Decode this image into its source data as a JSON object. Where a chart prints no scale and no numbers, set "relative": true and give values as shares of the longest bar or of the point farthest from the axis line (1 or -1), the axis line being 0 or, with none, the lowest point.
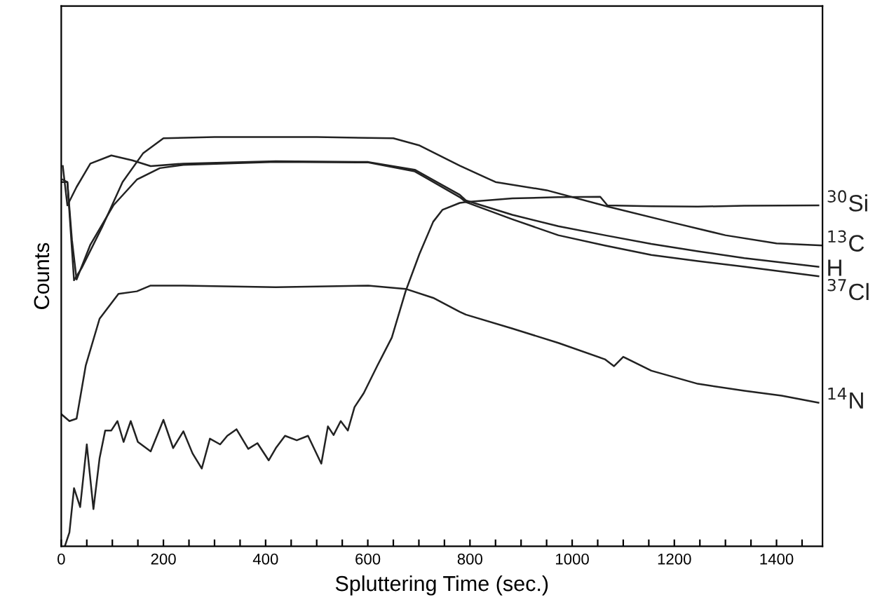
{
  "chart_data": {
    "type": "line",
    "relative": true,
    "xlabel": "Spluttering Time (sec.)",
    "ylabel": "Counts",
    "xlim": [
      0,
      1490
    ],
    "xticks": [
      0,
      {
        "value": 50,
        "label": null
      },
      {
        "value": 100,
        "label": null
      },
      {
        "value": 150,
        "label": null
      },
      200,
      {
        "value": 250,
        "label": null
      },
      {
        "value": 300,
        "label": null
      },
      {
        "value": 350,
        "label": null
      },
      400,
      {
        "value": 450,
        "label": null
      },
      {
        "value": 500,
        "label": null
      },
      {
        "value": 550,
        "label": null
      },
      600,
      {
        "value": 650,
        "label": null
      },
      {
        "value": 700,
        "label": null
      },
      {
        "value": 750,
        "label": null
      },
      800,
      {
        "value": 850,
        "label": null
      },
      {
        "value": 900,
        "label": null
      },
      {
        "value": 950,
        "label": null
      },
      1000,
      {
        "value": 1050,
        "label": null
      },
      {
        "value": 1100,
        "label": null
      },
      {
        "value": 1150,
        "label": null
      },
      1200,
      {
        "value": 1250,
        "label": null
      },
      {
        "value": 1300,
        "label": null
      },
      {
        "value": 1350,
        "label": null
      },
      1400,
      {
        "value": 1450,
        "label": null
      }
    ],
    "tick_labels": "x",
    "grid": false,
    "legend": false,
    "marker": "none",
    "line_style": "solid",
    "series": [
      {
        "name": "$^{30}$Si",
        "color": "#222222",
        "x": [
          7,
          16,
          25,
          37,
          50,
          63,
          75,
          86,
          98,
          110,
          122,
          136,
          150,
          175,
          200,
          219,
          239,
          257,
          275,
          291,
          311,
          325,
          343,
          366,
          384,
          406,
          420,
          438,
          461,
          483,
          509,
          522,
          533,
          547,
          561,
          574,
          592,
          619,
          647,
          674,
          701,
          728,
          746,
          780,
          792,
          883,
          973,
          1055,
          1069,
          1155,
          1246,
          1337,
          1482
        ],
        "values": [
          0,
          0.034,
          0.142,
          0.096,
          0.249,
          0.091,
          0.215,
          0.283,
          0.283,
          0.306,
          0.255,
          0.306,
          0.255,
          0.232,
          0.309,
          0.24,
          0.281,
          0.227,
          0.19,
          0.263,
          0.249,
          0.27,
          0.286,
          0.238,
          0.252,
          0.21,
          0.24,
          0.27,
          0.259,
          0.27,
          0.202,
          0.293,
          0.272,
          0.306,
          0.283,
          0.34,
          0.374,
          0.442,
          0.51,
          0.623,
          0.714,
          0.793,
          0.822,
          0.839,
          0.841,
          0.85,
          0.853,
          0.854,
          0.833,
          0.831,
          0.83,
          0.832,
          0.833
        ]
      },
      {
        "name": "$^{13}$C",
        "color": "#222222",
        "x": [
          0,
          12,
          25,
          40,
          80,
          120,
          160,
          200,
          300,
          500,
          650,
          700,
          780,
          850,
          950,
          1070,
          1200,
          1300,
          1400,
          1490
        ],
        "values": [
          0.89,
          0.89,
          0.65,
          0.68,
          0.78,
          0.89,
          0.96,
          0.997,
          1,
          1,
          0.997,
          0.98,
          0.93,
          0.89,
          0.87,
          0.83,
          0.79,
          0.76,
          0.74,
          0.735
        ]
      },
      {
        "name": "H",
        "color": "#222222",
        "x": [
          3,
          12,
          30,
          57,
          98,
          139,
          175,
          239,
          420,
          601,
          692,
          780,
          792,
          883,
          973,
          1064,
          1155,
          1246,
          1337,
          1482
        ],
        "values": [
          0.929,
          0.833,
          0.878,
          0.935,
          0.955,
          0.943,
          0.929,
          0.935,
          0.941,
          0.939,
          0.92,
          0.859,
          0.845,
          0.81,
          0.782,
          0.76,
          0.739,
          0.721,
          0.704,
          0.683
        ]
      },
      {
        "name": "$^{37}$Cl",
        "color": "#222222",
        "x": [
          3,
          12,
          21,
          30,
          57,
          102,
          148,
          193,
          239,
          420,
          601,
          692,
          780,
          792,
          883,
          973,
          1064,
          1155,
          1246,
          1337,
          1482
        ],
        "values": [
          0.896,
          0.89,
          0.748,
          0.652,
          0.737,
          0.833,
          0.896,
          0.924,
          0.932,
          0.939,
          0.938,
          0.916,
          0.853,
          0.841,
          0.799,
          0.76,
          0.735,
          0.712,
          0.697,
          0.683,
          0.66
        ]
      },
      {
        "name": "$^{14}$N",
        "color": "#222222",
        "x": [
          0,
          16,
          30,
          48,
          75,
          112,
          148,
          175,
          239,
          420,
          601,
          674,
          728,
          780,
          792,
          883,
          973,
          1064,
          1082,
          1100,
          1155,
          1246,
          1337,
          1410,
          1482
        ],
        "values": [
          0.323,
          0.306,
          0.312,
          0.442,
          0.556,
          0.617,
          0.623,
          0.637,
          0.637,
          0.633,
          0.637,
          0.629,
          0.607,
          0.573,
          0.566,
          0.532,
          0.497,
          0.457,
          0.44,
          0.463,
          0.429,
          0.397,
          0.38,
          0.368,
          0.351
        ]
      }
    ]
  }
}
